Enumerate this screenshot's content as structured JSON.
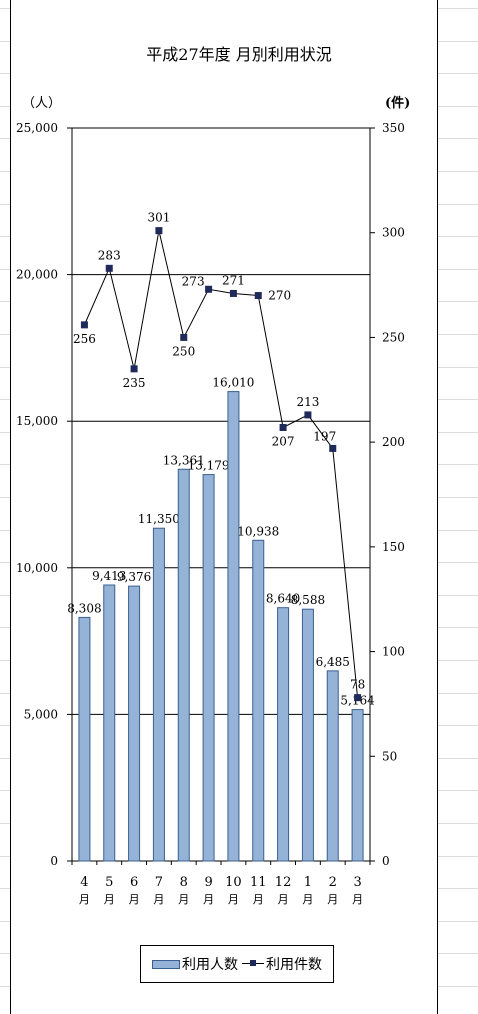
{
  "chart_data": {
    "type": "bar+line",
    "title": "平成27年度 月別利用状況",
    "y_left_unit": "（人）",
    "y_right_unit": "(件)",
    "ylim_left": [
      0,
      25000
    ],
    "ylim_right": [
      0,
      350
    ],
    "y_left_ticks": [
      "0",
      "5,000",
      "10,000",
      "15,000",
      "20,000",
      "25,000"
    ],
    "y_right_ticks": [
      "0",
      "50",
      "100",
      "150",
      "200",
      "250",
      "300",
      "350"
    ],
    "categories": [
      {
        "num": "4",
        "unit": "月"
      },
      {
        "num": "5",
        "unit": "月"
      },
      {
        "num": "6",
        "unit": "月"
      },
      {
        "num": "7",
        "unit": "月"
      },
      {
        "num": "8",
        "unit": "月"
      },
      {
        "num": "9",
        "unit": "月"
      },
      {
        "num": "10",
        "unit": "月"
      },
      {
        "num": "11",
        "unit": "月"
      },
      {
        "num": "12",
        "unit": "月"
      },
      {
        "num": "1",
        "unit": "月"
      },
      {
        "num": "2",
        "unit": "月"
      },
      {
        "num": "3",
        "unit": "月"
      }
    ],
    "series": [
      {
        "name": "利用人数",
        "type": "bar",
        "axis": "left",
        "color": "#95b3d7",
        "values": [
          8308,
          9413,
          9376,
          11350,
          13361,
          13179,
          16010,
          10938,
          8640,
          8588,
          6485,
          5164
        ],
        "labels": [
          "8,308",
          "9,413",
          "9,376",
          "11,350",
          "13,361",
          "13,179",
          "16,010",
          "10,938",
          "8,640",
          "8,588",
          "6,485",
          "5,164"
        ]
      },
      {
        "name": "利用件数",
        "type": "line",
        "axis": "right",
        "color": "#1f2a5a",
        "values": [
          256,
          283,
          235,
          301,
          250,
          273,
          271,
          270,
          207,
          213,
          197,
          78
        ],
        "labels": [
          "256",
          "283",
          "235",
          "301",
          "250",
          "273",
          "271",
          "270",
          "207",
          "213",
          "197",
          "78"
        ]
      }
    ],
    "grid": true,
    "legend_position": "bottom"
  }
}
